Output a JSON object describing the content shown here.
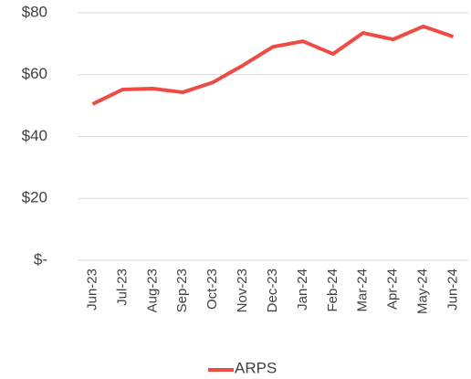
{
  "chart_data": {
    "type": "line",
    "categories": [
      "Jun-23",
      "Jul-23",
      "Aug-23",
      "Sep-23",
      "Oct-23",
      "Nov-23",
      "Dec-23",
      "Jan-24",
      "Feb-24",
      "Mar-24",
      "Apr-24",
      "May-24",
      "Jun-24"
    ],
    "series": [
      {
        "name": "ARPS",
        "color": "#ef4b45",
        "values": [
          50.5,
          55.2,
          55.5,
          54.3,
          57.5,
          63,
          69,
          70.8,
          66.7,
          73.5,
          71.4,
          75.6,
          72.3
        ]
      }
    ],
    "ylim": [
      0,
      80
    ],
    "yticks": [
      {
        "value": 0,
        "label": "$-"
      },
      {
        "value": 20,
        "label": "$20"
      },
      {
        "value": 40,
        "label": "$40"
      },
      {
        "value": 60,
        "label": "$60"
      },
      {
        "value": 80,
        "label": "$80"
      }
    ],
    "grid": true,
    "legend": "bottom"
  }
}
